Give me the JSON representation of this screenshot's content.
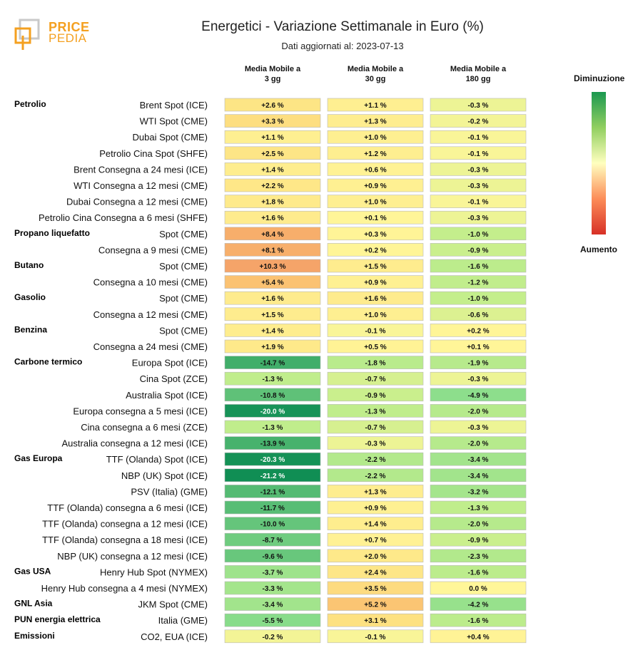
{
  "header": {
    "title": "Energetici - Variazione Settimanale in Euro (%)",
    "subtitle": "Dati aggiornati al: 2023-07-13",
    "logo_line1": "PRICE",
    "logo_line2": "PEDIA"
  },
  "legend": {
    "top_label": "Diminuzione",
    "bottom_label": "Aumento"
  },
  "chart_data": {
    "type": "heatmap",
    "columns": [
      "Media Mobile a\n3 gg",
      "Media Mobile a\n30 gg",
      "Media Mobile a\n180 gg"
    ],
    "rows": [
      {
        "group": "Petrolio",
        "label": "Brent Spot (ICE)",
        "values": [
          "+2.6 %",
          "+1.1 %",
          "-0.3 %"
        ]
      },
      {
        "group": "",
        "label": "WTI Spot (CME)",
        "values": [
          "+3.3 %",
          "+1.3 %",
          "-0.2 %"
        ]
      },
      {
        "group": "",
        "label": "Dubai Spot (CME)",
        "values": [
          "+1.1 %",
          "+1.0 %",
          "-0.1 %"
        ]
      },
      {
        "group": "",
        "label": "Petrolio Cina Spot (SHFE)",
        "values": [
          "+2.5 %",
          "+1.2 %",
          "-0.1 %"
        ]
      },
      {
        "group": "",
        "label": "Brent Consegna a 24 mesi (ICE)",
        "values": [
          "+1.4 %",
          "+0.6 %",
          "-0.3 %"
        ]
      },
      {
        "group": "",
        "label": "WTI Consegna a 12 mesi (CME)",
        "values": [
          "+2.2 %",
          "+0.9 %",
          "-0.3 %"
        ]
      },
      {
        "group": "",
        "label": "Dubai Consegna a 12 mesi (CME)",
        "values": [
          "+1.8 %",
          "+1.0 %",
          "-0.1 %"
        ]
      },
      {
        "group": "",
        "label": "Petrolio Cina Consegna a 6 mesi (SHFE)",
        "values": [
          "+1.6 %",
          "+0.1 %",
          "-0.3 %"
        ]
      },
      {
        "group": "Propano liquefatto",
        "label": "Spot (CME)",
        "values": [
          "+8.4 %",
          "+0.3 %",
          "-1.0 %"
        ]
      },
      {
        "group": "",
        "label": "Consegna a 9 mesi (CME)",
        "values": [
          "+8.1 %",
          "+0.2 %",
          "-0.9 %"
        ]
      },
      {
        "group": "Butano",
        "label": "Spot (CME)",
        "values": [
          "+10.3 %",
          "+1.5 %",
          "-1.6 %"
        ]
      },
      {
        "group": "",
        "label": "Consegna a 10 mesi (CME)",
        "values": [
          "+5.4 %",
          "+0.9 %",
          "-1.2 %"
        ]
      },
      {
        "group": "Gasolio",
        "label": "Spot (CME)",
        "values": [
          "+1.6 %",
          "+1.6 %",
          "-1.0 %"
        ]
      },
      {
        "group": "",
        "label": "Consegna a 12 mesi (CME)",
        "values": [
          "+1.5 %",
          "+1.0 %",
          "-0.6 %"
        ]
      },
      {
        "group": "Benzina",
        "label": "Spot (CME)",
        "values": [
          "+1.4 %",
          "-0.1 %",
          "+0.2 %"
        ]
      },
      {
        "group": "",
        "label": "Consegna a 24 mesi (CME)",
        "values": [
          "+1.9 %",
          "+0.5 %",
          "+0.1 %"
        ]
      },
      {
        "group": "Carbone termico",
        "label": "Europa Spot (ICE)",
        "values": [
          "-14.7 %",
          "-1.8 %",
          "-1.9 %"
        ]
      },
      {
        "group": "",
        "label": "Cina Spot (ZCE)",
        "values": [
          "-1.3 %",
          "-0.7 %",
          "-0.3 %"
        ]
      },
      {
        "group": "",
        "label": "Australia Spot (ICE)",
        "values": [
          "-10.8 %",
          "-0.9 %",
          "-4.9 %"
        ]
      },
      {
        "group": "",
        "label": "Europa consegna a 5 mesi (ICE)",
        "values": [
          "-20.0 %",
          "-1.3 %",
          "-2.0 %"
        ]
      },
      {
        "group": "",
        "label": "Cina consegna a 6 mesi (ZCE)",
        "values": [
          "-1.3 %",
          "-0.7 %",
          "-0.3 %"
        ]
      },
      {
        "group": "",
        "label": "Australia consegna a 12 mesi (ICE)",
        "values": [
          "-13.9 %",
          "-0.3 %",
          "-2.0 %"
        ]
      },
      {
        "group": "Gas Europa",
        "label": "TTF (Olanda) Spot (ICE)",
        "values": [
          "-20.3 %",
          "-2.2 %",
          "-3.4 %"
        ]
      },
      {
        "group": "",
        "label": "NBP (UK) Spot (ICE)",
        "values": [
          "-21.2 %",
          "-2.2 %",
          "-3.4 %"
        ]
      },
      {
        "group": "",
        "label": "PSV (Italia) (GME)",
        "values": [
          "-12.1 %",
          "+1.3 %",
          "-3.2 %"
        ]
      },
      {
        "group": "",
        "label": "TTF (Olanda) consegna a 6 mesi (ICE)",
        "values": [
          "-11.7 %",
          "+0.9 %",
          "-1.3 %"
        ]
      },
      {
        "group": "",
        "label": "TTF (Olanda) consegna a 12 mesi (ICE)",
        "values": [
          "-10.0 %",
          "+1.4 %",
          "-2.0 %"
        ]
      },
      {
        "group": "",
        "label": "TTF (Olanda) consegna a 18 mesi (ICE)",
        "values": [
          "-8.7 %",
          "+0.7 %",
          "-0.9 %"
        ]
      },
      {
        "group": "",
        "label": "NBP (UK) consegna a 12 mesi (ICE)",
        "values": [
          "-9.6 %",
          "+2.0 %",
          "-2.3 %"
        ]
      },
      {
        "group": "Gas USA",
        "label": "Henry Hub Spot (NYMEX)",
        "values": [
          "-3.7 %",
          "+2.4 %",
          "-1.6 %"
        ]
      },
      {
        "group": "",
        "label": "Henry Hub consegna a 4 mesi (NYMEX)",
        "values": [
          "-3.3 %",
          "+3.5 %",
          "0.0 %"
        ]
      },
      {
        "group": "GNL Asia",
        "label": "JKM Spot (CME)",
        "values": [
          "-3.4 %",
          "+5.2 %",
          "-4.2 %"
        ]
      },
      {
        "group": "PUN energia elettrica",
        "label": "Italia (GME)",
        "values": [
          "-5.5 %",
          "+3.1 %",
          "-1.6 %"
        ]
      },
      {
        "group": "Emissioni",
        "label": "CO2, EUA (ICE)",
        "values": [
          "-0.2 %",
          "-0.1 %",
          "+0.4 %"
        ]
      }
    ]
  }
}
